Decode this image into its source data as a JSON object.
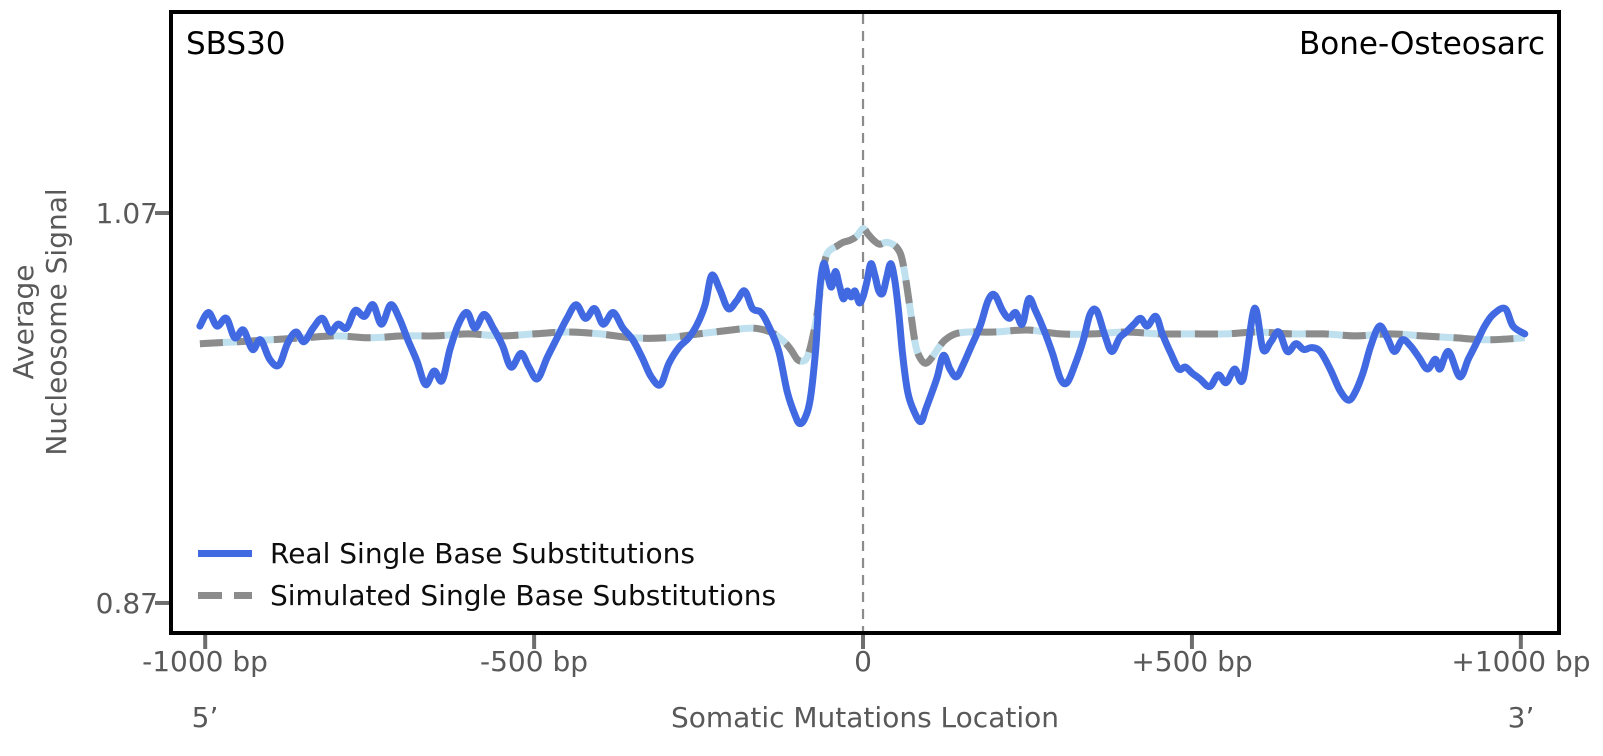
{
  "figure": {
    "signature_label": "SBS30",
    "cancer_type_label": "Bone-Osteosarc",
    "ylabel_line1": "Average",
    "ylabel_line2": "Nucleosome Signal",
    "xlabel": "Somatic Mutations Location",
    "five_prime_label": "5’",
    "three_prime_label": "3’"
  },
  "chart_data": {
    "type": "line",
    "title": "SBS30",
    "right_annotation": "Bone-Osteosarc",
    "xlabel": "Somatic Mutations Location",
    "ylabel": "Average Nucleosome Signal",
    "grid": false,
    "legend_position": "lower left",
    "xlim": [
      -1052,
      1058
    ],
    "ylim": [
      0.8546,
      1.1731
    ],
    "xticks": [
      {
        "bp": -1000,
        "label": "-1000 bp"
      },
      {
        "bp": -500,
        "label": "-500 bp"
      },
      {
        "bp": 0,
        "label": "0"
      },
      {
        "bp": 500,
        "label": "+500 bp"
      },
      {
        "bp": 1000,
        "label": "+1000 bp"
      }
    ],
    "yticks": [
      {
        "value": 1.07,
        "label": "1.07"
      },
      {
        "value": 0.87,
        "label": "0.87"
      }
    ],
    "vline_bp": 0,
    "vline_color": "#8c8c8c",
    "series": [
      {
        "name": "Real Single Base Substitutions",
        "color": "#4169e1",
        "dashed": false,
        "points": [
          [
            -1008,
            1.012
          ],
          [
            -995,
            1.019
          ],
          [
            -982,
            1.012
          ],
          [
            -968,
            1.016
          ],
          [
            -955,
            1.006
          ],
          [
            -942,
            1.01
          ],
          [
            -928,
            1.0
          ],
          [
            -916,
            1.005
          ],
          [
            -902,
            0.995
          ],
          [
            -888,
            0.992
          ],
          [
            -875,
            1.003
          ],
          [
            -862,
            1.009
          ],
          [
            -850,
            1.004
          ],
          [
            -836,
            1.011
          ],
          [
            -822,
            1.016
          ],
          [
            -810,
            1.009
          ],
          [
            -798,
            1.013
          ],
          [
            -785,
            1.011
          ],
          [
            -772,
            1.02
          ],
          [
            -758,
            1.017
          ],
          [
            -745,
            1.023
          ],
          [
            -732,
            1.013
          ],
          [
            -718,
            1.023
          ],
          [
            -705,
            1.016
          ],
          [
            -692,
            1.005
          ],
          [
            -678,
            0.994
          ],
          [
            -665,
            0.982
          ],
          [
            -652,
            0.989
          ],
          [
            -640,
            0.984
          ],
          [
            -628,
            1.0
          ],
          [
            -615,
            1.013
          ],
          [
            -602,
            1.019
          ],
          [
            -590,
            1.011
          ],
          [
            -576,
            1.018
          ],
          [
            -562,
            1.011
          ],
          [
            -548,
            1.002
          ],
          [
            -535,
            0.991
          ],
          [
            -520,
            0.998
          ],
          [
            -508,
            0.991
          ],
          [
            -495,
            0.985
          ],
          [
            -480,
            0.996
          ],
          [
            -465,
            1.006
          ],
          [
            -450,
            1.016
          ],
          [
            -436,
            1.023
          ],
          [
            -422,
            1.016
          ],
          [
            -408,
            1.021
          ],
          [
            -395,
            1.013
          ],
          [
            -380,
            1.019
          ],
          [
            -365,
            1.011
          ],
          [
            -350,
            1.005
          ],
          [
            -336,
            0.996
          ],
          [
            -322,
            0.986
          ],
          [
            -308,
            0.982
          ],
          [
            -295,
            0.993
          ],
          [
            -280,
            1.001
          ],
          [
            -265,
            1.006
          ],
          [
            -252,
            1.013
          ],
          [
            -240,
            1.023
          ],
          [
            -230,
            1.038
          ],
          [
            -218,
            1.031
          ],
          [
            -205,
            1.021
          ],
          [
            -192,
            1.025
          ],
          [
            -180,
            1.03
          ],
          [
            -168,
            1.021
          ],
          [
            -155,
            1.019
          ],
          [
            -142,
            1.011
          ],
          [
            -128,
            0.999
          ],
          [
            -115,
            0.978
          ],
          [
            -103,
            0.966
          ],
          [
            -96,
            0.962
          ],
          [
            -88,
            0.965
          ],
          [
            -80,
            0.975
          ],
          [
            -72,
            1.0
          ],
          [
            -66,
            1.03
          ],
          [
            -60,
            1.044
          ],
          [
            -54,
            1.038
          ],
          [
            -48,
            1.032
          ],
          [
            -42,
            1.04
          ],
          [
            -36,
            1.033
          ],
          [
            -30,
            1.026
          ],
          [
            -24,
            1.03
          ],
          [
            -18,
            1.027
          ],
          [
            -12,
            1.03
          ],
          [
            -6,
            1.024
          ],
          [
            0,
            1.027
          ],
          [
            6,
            1.035
          ],
          [
            12,
            1.044
          ],
          [
            18,
            1.038
          ],
          [
            24,
            1.03
          ],
          [
            30,
            1.029
          ],
          [
            36,
            1.037
          ],
          [
            42,
            1.044
          ],
          [
            48,
            1.036
          ],
          [
            54,
            1.02
          ],
          [
            60,
            0.998
          ],
          [
            68,
            0.978
          ],
          [
            78,
            0.968
          ],
          [
            88,
            0.963
          ],
          [
            96,
            0.97
          ],
          [
            112,
            0.985
          ],
          [
            122,
            0.997
          ],
          [
            132,
            0.99
          ],
          [
            142,
            0.986
          ],
          [
            152,
            0.992
          ],
          [
            165,
            1.002
          ],
          [
            178,
            1.012
          ],
          [
            190,
            1.025
          ],
          [
            200,
            1.028
          ],
          [
            212,
            1.02
          ],
          [
            222,
            1.016
          ],
          [
            232,
            1.019
          ],
          [
            242,
            1.013
          ],
          [
            252,
            1.026
          ],
          [
            262,
            1.02
          ],
          [
            275,
            1.01
          ],
          [
            288,
            0.998
          ],
          [
            300,
            0.985
          ],
          [
            310,
            0.983
          ],
          [
            322,
            0.992
          ],
          [
            335,
            1.005
          ],
          [
            345,
            1.018
          ],
          [
            355,
            1.02
          ],
          [
            367,
            1.008
          ],
          [
            378,
            0.999
          ],
          [
            390,
            1.006
          ],
          [
            400,
            1.009
          ],
          [
            412,
            1.013
          ],
          [
            422,
            1.016
          ],
          [
            432,
            1.012
          ],
          [
            445,
            1.017
          ],
          [
            455,
            1.008
          ],
          [
            468,
            0.998
          ],
          [
            480,
            0.99
          ],
          [
            490,
            0.991
          ],
          [
            500,
            0.988
          ],
          [
            512,
            0.985
          ],
          [
            527,
            0.981
          ],
          [
            540,
            0.987
          ],
          [
            552,
            0.983
          ],
          [
            565,
            0.99
          ],
          [
            578,
            0.985
          ],
          [
            595,
            1.021
          ],
          [
            608,
            1.0
          ],
          [
            620,
            1.004
          ],
          [
            632,
            1.009
          ],
          [
            645,
            0.999
          ],
          [
            658,
            1.003
          ],
          [
            670,
            1.0
          ],
          [
            682,
            1.001
          ],
          [
            695,
            0.999
          ],
          [
            710,
            0.99
          ],
          [
            725,
            0.979
          ],
          [
            738,
            0.974
          ],
          [
            748,
            0.978
          ],
          [
            760,
            0.988
          ],
          [
            772,
            1.002
          ],
          [
            785,
            1.012
          ],
          [
            797,
            1.006
          ],
          [
            808,
            0.999
          ],
          [
            820,
            1.005
          ],
          [
            832,
            1.002
          ],
          [
            845,
            0.996
          ],
          [
            858,
            0.99
          ],
          [
            870,
            0.995
          ],
          [
            877,
            0.99
          ],
          [
            890,
            0.999
          ],
          [
            907,
            0.986
          ],
          [
            920,
            0.995
          ],
          [
            932,
            1.003
          ],
          [
            945,
            1.012
          ],
          [
            958,
            1.018
          ],
          [
            976,
            1.021
          ],
          [
            988,
            1.012
          ],
          [
            1006,
            1.008
          ]
        ]
      },
      {
        "name": "Simulated Single Base Substitutions",
        "color": "#8c8c8c",
        "underlay_color": "#bfe0ee",
        "dashed": true,
        "points": [
          [
            -1008,
            1.003
          ],
          [
            -950,
            1.004
          ],
          [
            -900,
            1.005
          ],
          [
            -850,
            1.006
          ],
          [
            -800,
            1.007
          ],
          [
            -750,
            1.006
          ],
          [
            -700,
            1.007
          ],
          [
            -650,
            1.007
          ],
          [
            -600,
            1.008
          ],
          [
            -550,
            1.007
          ],
          [
            -500,
            1.008
          ],
          [
            -450,
            1.009
          ],
          [
            -400,
            1.008
          ],
          [
            -350,
            1.006
          ],
          [
            -300,
            1.006
          ],
          [
            -250,
            1.008
          ],
          [
            -200,
            1.01
          ],
          [
            -170,
            1.011
          ],
          [
            -150,
            1.01
          ],
          [
            -135,
            1.008
          ],
          [
            -120,
            1.004
          ],
          [
            -110,
            1.0
          ],
          [
            -100,
            0.995
          ],
          [
            -92,
            0.994
          ],
          [
            -85,
            0.996
          ],
          [
            -78,
            1.004
          ],
          [
            -70,
            1.018
          ],
          [
            -62,
            1.038
          ],
          [
            -56,
            1.048
          ],
          [
            -50,
            1.051
          ],
          [
            -40,
            1.053
          ],
          [
            -30,
            1.055
          ],
          [
            -20,
            1.056
          ],
          [
            -10,
            1.058
          ],
          [
            0,
            1.062
          ],
          [
            8,
            1.059
          ],
          [
            16,
            1.056
          ],
          [
            25,
            1.054
          ],
          [
            35,
            1.055
          ],
          [
            45,
            1.054
          ],
          [
            52,
            1.052
          ],
          [
            58,
            1.048
          ],
          [
            64,
            1.038
          ],
          [
            72,
            1.02
          ],
          [
            80,
            1.002
          ],
          [
            88,
            0.995
          ],
          [
            96,
            0.993
          ],
          [
            105,
            0.996
          ],
          [
            115,
            1.001
          ],
          [
            125,
            1.005
          ],
          [
            140,
            1.008
          ],
          [
            160,
            1.009
          ],
          [
            200,
            1.009
          ],
          [
            250,
            1.01
          ],
          [
            300,
            1.008
          ],
          [
            350,
            1.008
          ],
          [
            400,
            1.009
          ],
          [
            450,
            1.008
          ],
          [
            500,
            1.008
          ],
          [
            550,
            1.008
          ],
          [
            600,
            1.009
          ],
          [
            650,
            1.008
          ],
          [
            700,
            1.008
          ],
          [
            750,
            1.007
          ],
          [
            800,
            1.008
          ],
          [
            850,
            1.007
          ],
          [
            900,
            1.006
          ],
          [
            950,
            1.005
          ],
          [
            1006,
            1.006
          ]
        ]
      }
    ]
  }
}
